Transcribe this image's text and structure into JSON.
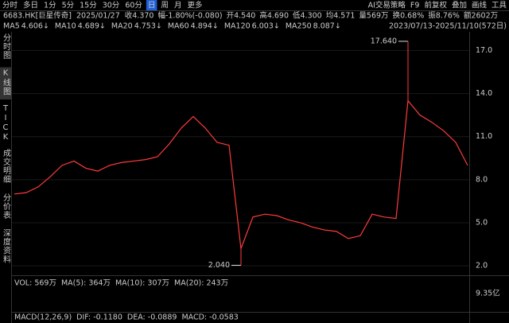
{
  "toolbar": {
    "periods": [
      "分时",
      "多日",
      "1分",
      "5分",
      "15分",
      "30分",
      "60分",
      "日",
      "周",
      "月",
      "更多"
    ],
    "selected": 7,
    "tools": [
      "AI交易策略",
      "F9",
      "前复权",
      "叠加",
      "画线",
      "工具"
    ]
  },
  "quote": {
    "symbol": "6683.HK[巨星传奇]",
    "date": "2025/01/27",
    "fields": [
      {
        "text": "收4.370",
        "color": "#2fcf4a"
      },
      {
        "text": "幅-1.80%(-0.080)",
        "color": "#2fcf4a"
      },
      {
        "text": "开4.540",
        "color": "#ff3b3b"
      },
      {
        "text": "高4.690",
        "color": "#ff3b3b"
      },
      {
        "text": "低4.300",
        "color": "#2fcf4a"
      },
      {
        "text": "均4.571",
        "color": "#ff3b3b"
      },
      {
        "text": "量569万",
        "color": "#dddddd"
      },
      {
        "text": "换0.68%",
        "color": "#dddddd"
      },
      {
        "text": "振8.76%",
        "color": "#dddddd"
      },
      {
        "text": "额2602万",
        "color": "#dddddd"
      }
    ]
  },
  "ma": [
    {
      "name": "MA5",
      "value": "4.606↓",
      "color": "#ffffff"
    },
    {
      "name": "MA10",
      "value": "4.689↓",
      "color": "#f2c230"
    },
    {
      "name": "MA20",
      "value": "4.753↓",
      "color": "#e040e0"
    },
    {
      "name": "MA60",
      "value": "4.894↓",
      "color": "#3fd16a"
    },
    {
      "name": "MA120",
      "value": "6.003↓",
      "color": "#3fb6e8"
    },
    {
      "name": "MA250",
      "value": "8.087↓",
      "color": "#3f6fff"
    }
  ],
  "range": "2023/07/13-2025/11/10(572日)",
  "sidebar": {
    "tabs": [
      "分时图",
      "K线图",
      "TICK",
      "成交明细",
      "分价表",
      "深度资料"
    ],
    "selected": 1
  },
  "chart": {
    "type": "line",
    "color": "#ff3b3b",
    "close": [
      7.0,
      7.1,
      7.5,
      8.2,
      9.0,
      9.3,
      8.8,
      8.6,
      9.0,
      9.2,
      9.3,
      9.4,
      9.6,
      10.5,
      11.6,
      12.4,
      11.6,
      10.6,
      10.4,
      3.2,
      5.4,
      5.6,
      5.5,
      5.2,
      5.0,
      4.7,
      4.5,
      4.4,
      3.9,
      4.1,
      5.6,
      5.4,
      5.3,
      13.5,
      12.5,
      12.0,
      11.4,
      10.6,
      9.0
    ],
    "ylim": [
      1.4,
      18.3
    ],
    "yticks": [
      {
        "value": 17,
        "label": "17.0"
      },
      {
        "value": 14,
        "label": "14.0"
      },
      {
        "value": 11,
        "label": "11.0"
      },
      {
        "value": 8,
        "label": "8.0"
      },
      {
        "value": 5,
        "label": "5.0"
      },
      {
        "value": 2,
        "label": "2.0"
      }
    ],
    "annotations": [
      {
        "value": 17.64,
        "label": "17.640",
        "index": 33
      },
      {
        "value": 2.04,
        "label": "2.040",
        "index": 19
      }
    ]
  },
  "volume": {
    "legend": [
      {
        "text": "VOL: 569万",
        "color": "#dddddd"
      },
      {
        "text": "MA(5): 364万",
        "color": "#dddddd"
      },
      {
        "text": "MA(10): 307万",
        "color": "#f2c230"
      },
      {
        "text": "MA(20): 243万",
        "color": "#e040e0"
      }
    ],
    "axis_label": "9.35亿"
  },
  "macd": {
    "legend": [
      {
        "text": "MACD(12,26,9)",
        "color": "#dddddd"
      },
      {
        "text": "DIF: -0.1180",
        "color": "#dddddd"
      },
      {
        "text": "DEA: -0.0889",
        "color": "#f2c230"
      },
      {
        "text": "MACD: -0.0583",
        "color": "#3fb6e8"
      }
    ]
  }
}
